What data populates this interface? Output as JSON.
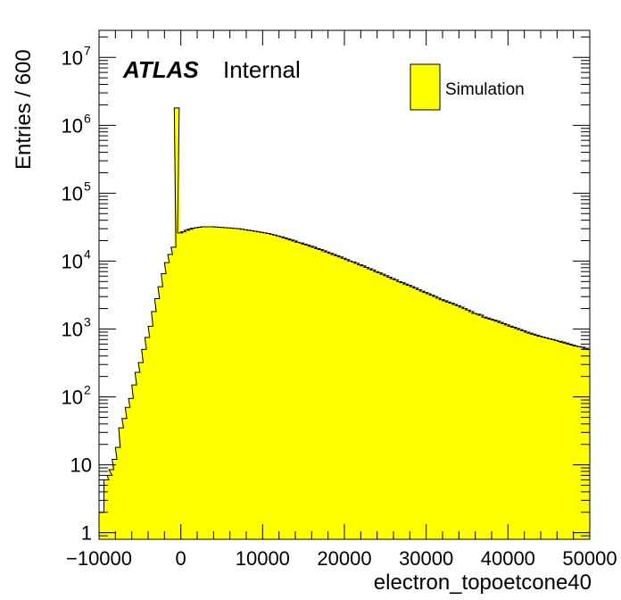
{
  "chart_data": {
    "type": "bar",
    "x_label": "electron_topoetcone40",
    "y_label": "Entries / 600",
    "x_range": [
      -10000,
      50000
    ],
    "y_range": [
      0.8,
      25000000
    ],
    "y_scale": "log",
    "bin_width": 600,
    "x_ticks": [
      -10000,
      0,
      10000,
      20000,
      30000,
      40000,
      50000
    ],
    "x_tick_labels": [
      "−10000",
      "0",
      "10000",
      "20000",
      "30000",
      "40000",
      "50000"
    ],
    "y_ticks": [
      {
        "value": 1,
        "base": "1",
        "exp": ""
      },
      {
        "value": 10,
        "base": "10",
        "exp": ""
      },
      {
        "value": 100,
        "base": "10",
        "exp": "2"
      },
      {
        "value": 1000,
        "base": "10",
        "exp": "3"
      },
      {
        "value": 10000,
        "base": "10",
        "exp": "4"
      },
      {
        "value": 100000,
        "base": "10",
        "exp": "5"
      },
      {
        "value": 1000000,
        "base": "10",
        "exp": "6"
      },
      {
        "value": 10000000,
        "base": "10",
        "exp": "7"
      }
    ],
    "grid": false,
    "fill_color": "#ffff00",
    "line_color": "#000000",
    "legend": {
      "position": "top-right",
      "entries": [
        "Simulation"
      ]
    },
    "annotation": {
      "atlas": "ATLAS",
      "status": "Internal"
    },
    "series": [
      {
        "name": "Simulation",
        "bins": [
          [
            -10000,
            2
          ],
          [
            -9400,
            6
          ],
          [
            -9000,
            7
          ],
          [
            -8800,
            8.5
          ],
          [
            -8400,
            12
          ],
          [
            -8000,
            18
          ],
          [
            -7600,
            35
          ],
          [
            -7200,
            48
          ],
          [
            -6800,
            70
          ],
          [
            -6400,
            95
          ],
          [
            -6000,
            150
          ],
          [
            -5600,
            230
          ],
          [
            -5200,
            320
          ],
          [
            -4800,
            500
          ],
          [
            -4400,
            750
          ],
          [
            -4000,
            1100
          ],
          [
            -3600,
            1800
          ],
          [
            -3200,
            2800
          ],
          [
            -2800,
            4200
          ],
          [
            -2400,
            6500
          ],
          [
            -2000,
            9500
          ],
          [
            -1600,
            12500
          ],
          [
            -1200,
            16000
          ],
          [
            -800,
            1800000
          ],
          [
            -400,
            26000
          ],
          [
            0,
            27000
          ],
          [
            400,
            28500
          ],
          [
            800,
            29500
          ],
          [
            1200,
            30500
          ],
          [
            1600,
            31000
          ],
          [
            2000,
            31500
          ],
          [
            2400,
            32000
          ],
          [
            2800,
            32000
          ],
          [
            3200,
            32000
          ],
          [
            3600,
            32000
          ],
          [
            4000,
            31800
          ],
          [
            4400,
            31500
          ],
          [
            4800,
            31300
          ],
          [
            5200,
            31000
          ],
          [
            5600,
            30800
          ],
          [
            6000,
            30500
          ],
          [
            6400,
            30200
          ],
          [
            6800,
            30000
          ],
          [
            7200,
            29500
          ],
          [
            7600,
            29000
          ],
          [
            8000,
            28500
          ],
          [
            8400,
            28000
          ],
          [
            8800,
            27500
          ],
          [
            9200,
            27000
          ],
          [
            9600,
            26500
          ],
          [
            10000,
            26000
          ],
          [
            10400,
            25500
          ],
          [
            10800,
            24800
          ],
          [
            11200,
            24200
          ],
          [
            11600,
            23500
          ],
          [
            12000,
            22800
          ],
          [
            12400,
            22000
          ],
          [
            12800,
            21200
          ],
          [
            13200,
            20500
          ],
          [
            13600,
            19800
          ],
          [
            14000,
            19000
          ],
          [
            14400,
            18500
          ],
          [
            14800,
            17800
          ],
          [
            15200,
            17200
          ],
          [
            15600,
            16500
          ],
          [
            16000,
            16000
          ],
          [
            16400,
            15300
          ],
          [
            16800,
            14800
          ],
          [
            17200,
            14200
          ],
          [
            17600,
            13600
          ],
          [
            18000,
            13000
          ],
          [
            18400,
            12500
          ],
          [
            18800,
            12000
          ],
          [
            19200,
            11500
          ],
          [
            19600,
            11000
          ],
          [
            20000,
            10500
          ],
          [
            20400,
            10000
          ],
          [
            20800,
            9700
          ],
          [
            21200,
            9300
          ],
          [
            21600,
            8800
          ],
          [
            22000,
            8500
          ],
          [
            22400,
            8100
          ],
          [
            22800,
            7700
          ],
          [
            23200,
            7400
          ],
          [
            23600,
            7000
          ],
          [
            24000,
            6700
          ],
          [
            24400,
            6400
          ],
          [
            24800,
            6100
          ],
          [
            25200,
            5800
          ],
          [
            25600,
            5500
          ],
          [
            26000,
            5300
          ],
          [
            26400,
            5000
          ],
          [
            26800,
            4800
          ],
          [
            27200,
            4600
          ],
          [
            27600,
            4400
          ],
          [
            28000,
            4200
          ],
          [
            28400,
            4000
          ],
          [
            28800,
            3800
          ],
          [
            29200,
            3600
          ],
          [
            29600,
            3450
          ],
          [
            30000,
            3300
          ],
          [
            30400,
            3150
          ],
          [
            30800,
            3000
          ],
          [
            31200,
            2850
          ],
          [
            31600,
            2700
          ],
          [
            32000,
            2600
          ],
          [
            32400,
            2500
          ],
          [
            32800,
            2400
          ],
          [
            33200,
            2300
          ],
          [
            33600,
            2200
          ],
          [
            34000,
            2100
          ],
          [
            34400,
            2000
          ],
          [
            34800,
            1900
          ],
          [
            35200,
            1800
          ],
          [
            35600,
            1700
          ],
          [
            36000,
            1650
          ],
          [
            36400,
            1600
          ],
          [
            36800,
            1500
          ],
          [
            37200,
            1450
          ],
          [
            37600,
            1400
          ],
          [
            38000,
            1350
          ],
          [
            38400,
            1300
          ],
          [
            38800,
            1250
          ],
          [
            39200,
            1200
          ],
          [
            39600,
            1150
          ],
          [
            40000,
            1100
          ],
          [
            40400,
            1060
          ],
          [
            40800,
            1020
          ],
          [
            41200,
            980
          ],
          [
            41600,
            940
          ],
          [
            42000,
            900
          ],
          [
            42400,
            870
          ],
          [
            42800,
            840
          ],
          [
            43200,
            810
          ],
          [
            43600,
            780
          ],
          [
            44000,
            760
          ],
          [
            44400,
            740
          ],
          [
            44800,
            720
          ],
          [
            45200,
            700
          ],
          [
            45600,
            680
          ],
          [
            46000,
            660
          ],
          [
            46400,
            640
          ],
          [
            46800,
            620
          ],
          [
            47200,
            600
          ],
          [
            47600,
            580
          ],
          [
            48000,
            560
          ],
          [
            48400,
            550
          ],
          [
            48800,
            540
          ],
          [
            49200,
            520
          ],
          [
            49600,
            500
          ]
        ]
      }
    ]
  }
}
